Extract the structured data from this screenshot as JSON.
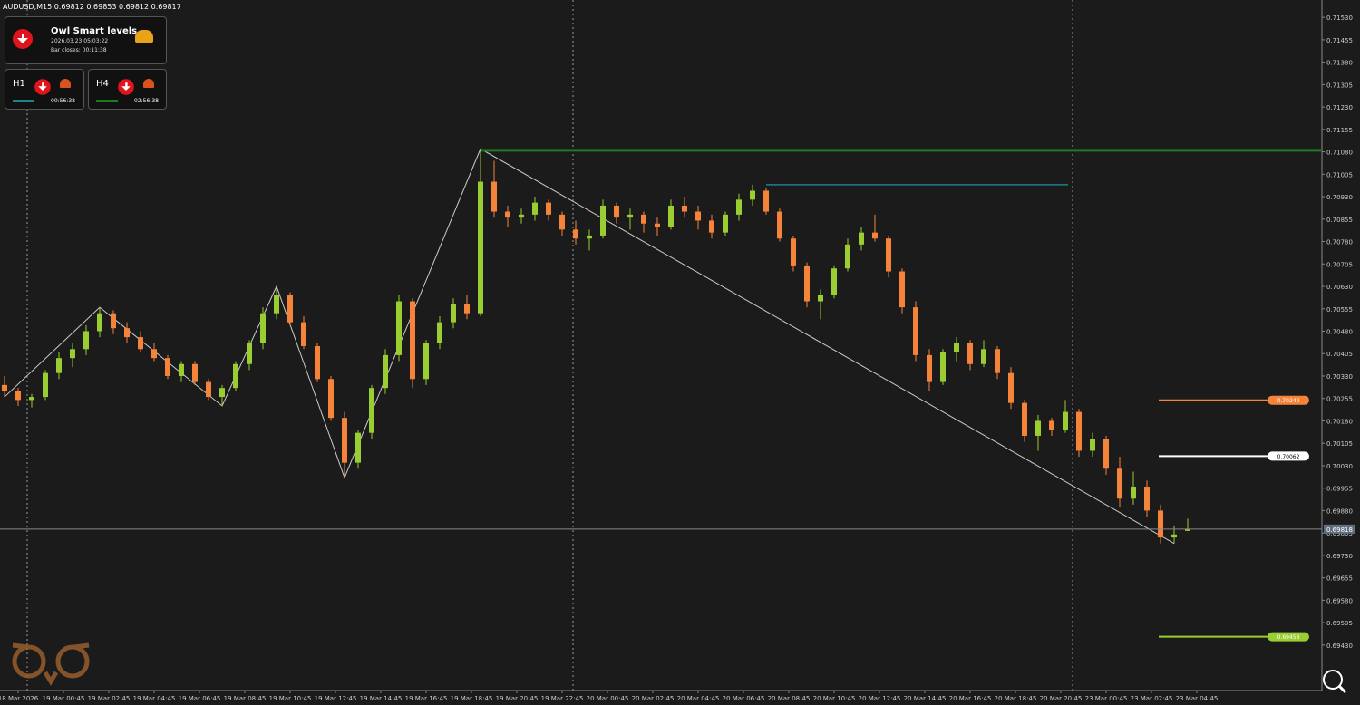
{
  "header": {
    "symbol_line": "AUDUSD,M15  0.69812 0.69853 0.69812 0.69817"
  },
  "panel": {
    "title": "Owl Smart levels",
    "datetime": "2026.03.23 05:03:22",
    "bar_closes": "Bar closes: 00:11:38",
    "tiles": [
      {
        "tf": "H1",
        "timer": "00:56:38"
      },
      {
        "tf": "H4",
        "timer": "02:56:38"
      }
    ]
  },
  "chart_data": {
    "type": "candlestick",
    "ylim": [
      0.69278,
      0.71588
    ],
    "yticks": [
      {
        "value": 0.7153,
        "label": "0.71530"
      },
      {
        "value": 0.71455,
        "label": "0.71455"
      },
      {
        "value": 0.7138,
        "label": "0.71380"
      },
      {
        "value": 0.71305,
        "label": "0.71305"
      },
      {
        "value": 0.7123,
        "label": "0.71230"
      },
      {
        "value": 0.71155,
        "label": "0.71155"
      },
      {
        "value": 0.7108,
        "label": "0.71080"
      },
      {
        "value": 0.71005,
        "label": "0.71005"
      },
      {
        "value": 0.7093,
        "label": "0.70930"
      },
      {
        "value": 0.70855,
        "label": "0.70855"
      },
      {
        "value": 0.7078,
        "label": "0.70780"
      },
      {
        "value": 0.70705,
        "label": "0.70705"
      },
      {
        "value": 0.7063,
        "label": "0.70630"
      },
      {
        "value": 0.70555,
        "label": "0.70555"
      },
      {
        "value": 0.7048,
        "label": "0.70480"
      },
      {
        "value": 0.70405,
        "label": "0.70405"
      },
      {
        "value": 0.7033,
        "label": "0.70330"
      },
      {
        "value": 0.70255,
        "label": "0.70255"
      },
      {
        "value": 0.7018,
        "label": "0.70180"
      },
      {
        "value": 0.70105,
        "label": "0.70105"
      },
      {
        "value": 0.7003,
        "label": "0.70030"
      },
      {
        "value": 0.69955,
        "label": "0.69955"
      },
      {
        "value": 0.6988,
        "label": "0.69880"
      },
      {
        "value": 0.69805,
        "label": "0.69805"
      },
      {
        "value": 0.6973,
        "label": "0.69730"
      },
      {
        "value": 0.69655,
        "label": "0.69655"
      },
      {
        "value": 0.6958,
        "label": "0.69580"
      },
      {
        "value": 0.69505,
        "label": "0.69505"
      },
      {
        "value": 0.6943,
        "label": "0.69430"
      }
    ],
    "time_labels": [
      "18 Mar 2026",
      "19 Mar 00:45",
      "19 Mar 02:45",
      "19 Mar 04:45",
      "19 Mar 06:45",
      "19 Mar 08:45",
      "19 Mar 10:45",
      "19 Mar 12:45",
      "19 Mar 14:45",
      "19 Mar 16:45",
      "19 Mar 18:45",
      "19 Mar 20:45",
      "19 Mar 22:45",
      "20 Mar 00:45",
      "20 Mar 02:45",
      "20 Mar 04:45",
      "20 Mar 06:45",
      "20 Mar 08:45",
      "20 Mar 10:45",
      "20 Mar 12:45",
      "20 Mar 14:45",
      "20 Mar 16:45",
      "20 Mar 18:45",
      "20 Mar 20:45",
      "23 Mar 00:45",
      "23 Mar 02:45",
      "23 Mar 04:45"
    ],
    "bull_color": "#9acd32",
    "bear_color": "#f5843a",
    "candles": [
      [
        0.703,
        0.7033,
        0.7026,
        0.7028
      ],
      [
        0.7028,
        0.7029,
        0.7023,
        0.7025
      ],
      [
        0.7025,
        0.7027,
        0.70225,
        0.7026
      ],
      [
        0.7026,
        0.7035,
        0.7025,
        0.7034
      ],
      [
        0.7034,
        0.7041,
        0.7032,
        0.7039
      ],
      [
        0.7039,
        0.7044,
        0.7036,
        0.7042
      ],
      [
        0.7042,
        0.705,
        0.704,
        0.7048
      ],
      [
        0.7048,
        0.7056,
        0.7046,
        0.7054
      ],
      [
        0.7054,
        0.7055,
        0.7047,
        0.7049
      ],
      [
        0.7049,
        0.7051,
        0.7044,
        0.7046
      ],
      [
        0.7046,
        0.7048,
        0.7041,
        0.7042
      ],
      [
        0.7042,
        0.7044,
        0.7038,
        0.7039
      ],
      [
        0.7039,
        0.704,
        0.7032,
        0.7033
      ],
      [
        0.7033,
        0.7038,
        0.7031,
        0.7037
      ],
      [
        0.7037,
        0.7038,
        0.703,
        0.7031
      ],
      [
        0.7031,
        0.7032,
        0.7025,
        0.7026
      ],
      [
        0.7026,
        0.703,
        0.7023,
        0.7029
      ],
      [
        0.7029,
        0.7038,
        0.7028,
        0.7037
      ],
      [
        0.7037,
        0.7045,
        0.7035,
        0.7044
      ],
      [
        0.7044,
        0.7056,
        0.7042,
        0.7054
      ],
      [
        0.7054,
        0.7063,
        0.7052,
        0.706
      ],
      [
        0.706,
        0.7061,
        0.705,
        0.7051
      ],
      [
        0.7051,
        0.7053,
        0.7042,
        0.7043
      ],
      [
        0.7043,
        0.7044,
        0.7031,
        0.7032
      ],
      [
        0.7032,
        0.7033,
        0.7018,
        0.7019
      ],
      [
        0.7019,
        0.7021,
        0.6999,
        0.7004
      ],
      [
        0.7004,
        0.7015,
        0.7002,
        0.7014
      ],
      [
        0.7014,
        0.703,
        0.7012,
        0.7029
      ],
      [
        0.7029,
        0.7042,
        0.7027,
        0.704
      ],
      [
        0.704,
        0.706,
        0.7038,
        0.7058
      ],
      [
        0.7058,
        0.7059,
        0.7029,
        0.7032
      ],
      [
        0.7032,
        0.7045,
        0.703,
        0.7044
      ],
      [
        0.7044,
        0.7053,
        0.7042,
        0.7051
      ],
      [
        0.7051,
        0.7059,
        0.7049,
        0.7057
      ],
      [
        0.7057,
        0.706,
        0.7052,
        0.7054
      ],
      [
        0.7054,
        0.7109,
        0.7053,
        0.7098
      ],
      [
        0.7098,
        0.7105,
        0.7086,
        0.7088
      ],
      [
        0.7088,
        0.709,
        0.7083,
        0.7086
      ],
      [
        0.7086,
        0.7089,
        0.7084,
        0.7087
      ],
      [
        0.7087,
        0.7093,
        0.7085,
        0.7091
      ],
      [
        0.7091,
        0.7092,
        0.7085,
        0.7087
      ],
      [
        0.7087,
        0.7088,
        0.708,
        0.7082
      ],
      [
        0.7082,
        0.7085,
        0.7077,
        0.7079
      ],
      [
        0.7079,
        0.7082,
        0.7075,
        0.708
      ],
      [
        0.708,
        0.7092,
        0.7079,
        0.709
      ],
      [
        0.709,
        0.7091,
        0.7084,
        0.7086
      ],
      [
        0.7086,
        0.7089,
        0.7082,
        0.7087
      ],
      [
        0.7087,
        0.7088,
        0.7081,
        0.7084
      ],
      [
        0.7084,
        0.7086,
        0.708,
        0.7083
      ],
      [
        0.7083,
        0.7092,
        0.7082,
        0.709
      ],
      [
        0.709,
        0.7093,
        0.7086,
        0.7088
      ],
      [
        0.7088,
        0.709,
        0.7082,
        0.7085
      ],
      [
        0.7085,
        0.7087,
        0.7079,
        0.7081
      ],
      [
        0.7081,
        0.7088,
        0.708,
        0.7087
      ],
      [
        0.7087,
        0.7094,
        0.7085,
        0.7092
      ],
      [
        0.7092,
        0.7097,
        0.709,
        0.7095
      ],
      [
        0.7095,
        0.7096,
        0.7087,
        0.7088
      ],
      [
        0.7088,
        0.7089,
        0.7078,
        0.7079
      ],
      [
        0.7079,
        0.708,
        0.7068,
        0.707
      ],
      [
        0.707,
        0.7071,
        0.7056,
        0.7058
      ],
      [
        0.7058,
        0.7062,
        0.7052,
        0.706
      ],
      [
        0.706,
        0.707,
        0.7059,
        0.7069
      ],
      [
        0.7069,
        0.7079,
        0.7068,
        0.7077
      ],
      [
        0.7077,
        0.7083,
        0.7075,
        0.7081
      ],
      [
        0.7081,
        0.7087,
        0.7078,
        0.7079
      ],
      [
        0.7079,
        0.708,
        0.7066,
        0.7068
      ],
      [
        0.7068,
        0.7069,
        0.7054,
        0.7056
      ],
      [
        0.7056,
        0.7058,
        0.7038,
        0.704
      ],
      [
        0.704,
        0.7042,
        0.7028,
        0.7031
      ],
      [
        0.7031,
        0.7042,
        0.703,
        0.7041
      ],
      [
        0.7041,
        0.7046,
        0.7038,
        0.7044
      ],
      [
        0.7044,
        0.7045,
        0.7035,
        0.7037
      ],
      [
        0.7037,
        0.7045,
        0.7036,
        0.7042
      ],
      [
        0.7042,
        0.7043,
        0.7032,
        0.7034
      ],
      [
        0.7034,
        0.7036,
        0.7022,
        0.7024
      ],
      [
        0.7024,
        0.7025,
        0.7011,
        0.7013
      ],
      [
        0.7013,
        0.702,
        0.7008,
        0.7018
      ],
      [
        0.7018,
        0.7019,
        0.7013,
        0.7015
      ],
      [
        0.7015,
        0.7025,
        0.7014,
        0.7021
      ],
      [
        0.7021,
        0.7022,
        0.7006,
        0.7008
      ],
      [
        0.7008,
        0.7014,
        0.7006,
        0.7012
      ],
      [
        0.7012,
        0.7013,
        0.7,
        0.7002
      ],
      [
        0.7002,
        0.7006,
        0.6989,
        0.6992
      ],
      [
        0.6992,
        0.7001,
        0.699,
        0.6996
      ],
      [
        0.6996,
        0.6998,
        0.6986,
        0.6988
      ],
      [
        0.6988,
        0.699,
        0.6977,
        0.6979
      ],
      [
        0.6979,
        0.6983,
        0.6977,
        0.698
      ],
      [
        0.69812,
        0.69853,
        0.69812,
        0.69817
      ]
    ],
    "lines": [
      {
        "value": 0.71085,
        "color": "#1f7a1f"
      },
      {
        "value": 0.7097,
        "color": "#1f7f8f"
      }
    ],
    "levels": [
      {
        "value": 0.70249,
        "color": "#f5843a"
      },
      {
        "value": 0.70062,
        "color": "#ffffff"
      },
      {
        "value": 0.69458,
        "color": "#9acd32"
      }
    ],
    "current_price": 0.69818
  }
}
